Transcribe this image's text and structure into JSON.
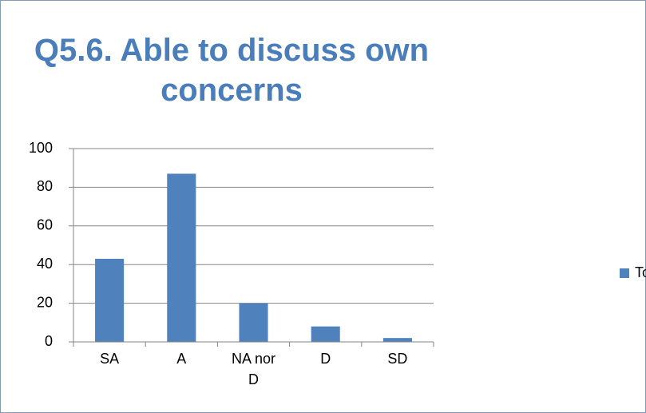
{
  "chart_data": {
    "type": "bar",
    "title": "Q5.6. Able to discuss own concerns",
    "categories": [
      "SA",
      "A",
      "NA nor D",
      "D",
      "SD"
    ],
    "series": [
      {
        "name": "Total Participants",
        "color": "#4f81bd",
        "values": [
          43,
          87,
          20,
          8,
          2
        ]
      }
    ],
    "ylim": [
      0,
      100
    ],
    "yticks": [
      0,
      20,
      40,
      60,
      80,
      100
    ],
    "grid": true,
    "legend": "right"
  }
}
